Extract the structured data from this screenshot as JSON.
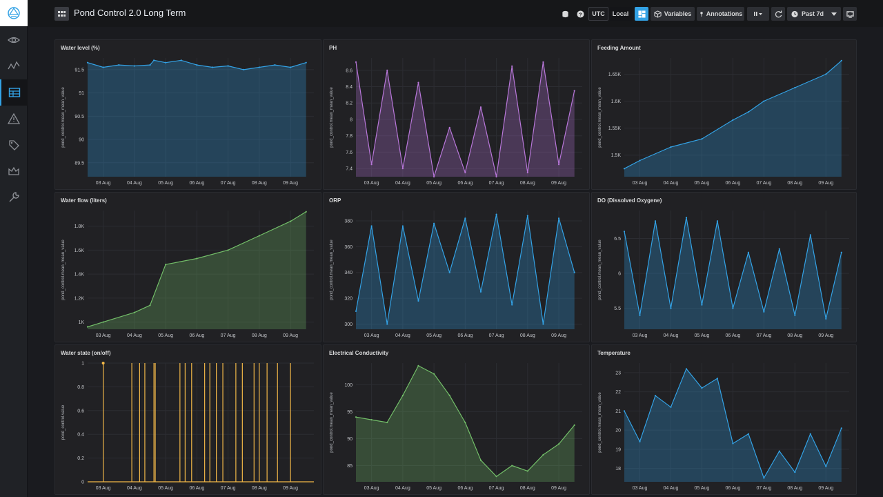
{
  "header": {
    "title": "Pond Control 2.0 Long Term",
    "utc_label": "UTC",
    "local_label": "Local",
    "variables_label": "Variables",
    "annotations_label": "Annotations",
    "time_range_label": "Past 7d"
  },
  "sidebar": {
    "items": [
      "logo-icon",
      "eye-icon",
      "pulse-icon",
      "dashboard-icon",
      "alert-icon",
      "tags-icon",
      "crown-icon",
      "wrench-icon"
    ]
  },
  "colors": {
    "blue": "#33a2e5",
    "pink": "#b877d9",
    "green": "#73bf69",
    "orange": "#f2b848",
    "accent": "#33a2e5"
  },
  "chart_data": [
    {
      "type": "area",
      "title": "Water level (%)",
      "ylabel": "pond_control.mean_mean_value",
      "color": "#33a2e5",
      "x": [
        "02 Aug 12:00",
        "03 Aug",
        "03 Aug 12:00",
        "04 Aug",
        "04 Aug 12:00",
        "04 Aug 15:00",
        "05 Aug",
        "05 Aug 12:00",
        "06 Aug",
        "06 Aug 12:00",
        "07 Aug",
        "07 Aug 12:00",
        "08 Aug",
        "08 Aug 12:00",
        "09 Aug",
        "09 Aug 12:00"
      ],
      "values": [
        91.65,
        91.55,
        91.6,
        91.58,
        91.6,
        91.7,
        91.65,
        91.7,
        91.6,
        91.55,
        91.58,
        91.5,
        91.55,
        91.6,
        91.55,
        91.65
      ],
      "ylim": [
        89.2,
        91.75
      ],
      "yticks": [
        "89.5",
        "90",
        "90.5",
        "91",
        "91.5"
      ],
      "xticks": [
        "03 Aug",
        "04 Aug",
        "05 Aug",
        "06 Aug",
        "07 Aug",
        "08 Aug",
        "09 Aug"
      ]
    },
    {
      "type": "area",
      "title": "PH",
      "ylabel": "pond_control.mean_mean_value",
      "color": "#b877d9",
      "x": [
        "02 Aug 12:00",
        "03 Aug",
        "03 Aug 12:00",
        "04 Aug",
        "04 Aug 12:00",
        "05 Aug",
        "05 Aug 12:00",
        "06 Aug",
        "06 Aug 12:00",
        "07 Aug",
        "07 Aug 12:00",
        "08 Aug",
        "08 Aug 12:00",
        "09 Aug",
        "09 Aug 12:00"
      ],
      "values": [
        8.7,
        7.45,
        8.6,
        7.4,
        8.45,
        7.3,
        7.9,
        7.35,
        8.15,
        7.3,
        8.65,
        7.35,
        8.7,
        7.45,
        8.35
      ],
      "ylim": [
        7.3,
        8.75
      ],
      "yticks": [
        "7.4",
        "7.6",
        "7.8",
        "8",
        "8.2",
        "8.4",
        "8.6"
      ],
      "xticks": [
        "03 Aug",
        "04 Aug",
        "05 Aug",
        "06 Aug",
        "07 Aug",
        "08 Aug",
        "09 Aug"
      ]
    },
    {
      "type": "area",
      "title": "Feeding Amount",
      "ylabel": "pond_control.mean_mean_value",
      "color": "#33a2e5",
      "x": [
        "02 Aug 12:00",
        "03 Aug",
        "04 Aug",
        "05 Aug",
        "06 Aug",
        "06 Aug 12:00",
        "07 Aug",
        "08 Aug",
        "09 Aug",
        "09 Aug 12:00"
      ],
      "values": [
        1475,
        1490,
        1515,
        1530,
        1565,
        1580,
        1600,
        1625,
        1650,
        1675
      ],
      "ylim": [
        1460,
        1680
      ],
      "yticks": [
        "1.5K",
        "1.55K",
        "1.6K",
        "1.65K"
      ],
      "xticks": [
        "03 Aug",
        "04 Aug",
        "05 Aug",
        "06 Aug",
        "07 Aug",
        "08 Aug",
        "09 Aug"
      ]
    },
    {
      "type": "area",
      "title": "Water flow (liters)",
      "ylabel": "pond_control.mean_mean_value",
      "color": "#73bf69",
      "x": [
        "02 Aug 12:00",
        "03 Aug",
        "04 Aug",
        "04 Aug 12:00",
        "05 Aug",
        "06 Aug",
        "07 Aug",
        "08 Aug",
        "09 Aug",
        "09 Aug 12:00"
      ],
      "values": [
        960,
        1000,
        1080,
        1140,
        1480,
        1530,
        1600,
        1720,
        1840,
        1920
      ],
      "ylim": [
        940,
        1930
      ],
      "yticks": [
        "1K",
        "1.2K",
        "1.4K",
        "1.6K",
        "1.8K"
      ],
      "xticks": [
        "03 Aug",
        "04 Aug",
        "05 Aug",
        "06 Aug",
        "07 Aug",
        "08 Aug",
        "09 Aug"
      ]
    },
    {
      "type": "area",
      "title": "ORP",
      "ylabel": "pond_control.mean_mean_value",
      "color": "#33a2e5",
      "x": [
        "02 Aug 12:00",
        "03 Aug",
        "03 Aug 12:00",
        "04 Aug",
        "04 Aug 12:00",
        "05 Aug",
        "05 Aug 12:00",
        "06 Aug",
        "06 Aug 12:00",
        "07 Aug",
        "07 Aug 12:00",
        "08 Aug",
        "08 Aug 12:00",
        "09 Aug",
        "09 Aug 12:00"
      ],
      "values": [
        310,
        376,
        300,
        376,
        318,
        378,
        340,
        382,
        325,
        385,
        315,
        384,
        300,
        382,
        340
      ],
      "ylim": [
        296,
        388
      ],
      "yticks": [
        "300",
        "320",
        "340",
        "360",
        "380"
      ],
      "xticks": [
        "03 Aug",
        "04 Aug",
        "05 Aug",
        "06 Aug",
        "07 Aug",
        "08 Aug",
        "09 Aug"
      ]
    },
    {
      "type": "area",
      "title": "DO (Dissolved Oxygene)",
      "ylabel": "pond_control.mean_mean_value",
      "color": "#33a2e5",
      "x": [
        "02 Aug 12:00",
        "03 Aug",
        "03 Aug 12:00",
        "04 Aug",
        "04 Aug 12:00",
        "05 Aug",
        "05 Aug 12:00",
        "06 Aug",
        "06 Aug 12:00",
        "07 Aug",
        "07 Aug 12:00",
        "08 Aug",
        "08 Aug 12:00",
        "09 Aug",
        "09 Aug 12:00"
      ],
      "values": [
        6.6,
        5.4,
        6.75,
        5.5,
        6.8,
        5.55,
        6.75,
        5.5,
        6.3,
        5.45,
        6.35,
        5.4,
        6.55,
        5.35,
        6.3
      ],
      "ylim": [
        5.2,
        6.9
      ],
      "yticks": [
        "5.5",
        "6",
        "6.5"
      ],
      "xticks": [
        "03 Aug",
        "04 Aug",
        "05 Aug",
        "06 Aug",
        "07 Aug",
        "08 Aug",
        "09 Aug"
      ]
    },
    {
      "type": "line",
      "title": "Water state (on/off)",
      "ylabel": "pond_control.value",
      "color": "#f2b848",
      "pulses": [
        "03 Aug 00:00",
        "03 Aug 22:00",
        "04 Aug 04:00",
        "04 Aug 08:00",
        "04 Aug 15:00",
        "04 Aug 16:00",
        "05 Aug 11:00",
        "05 Aug 15:00",
        "05 Aug 20:00",
        "06 Aug 06:00",
        "06 Aug 10:00",
        "06 Aug 15:00",
        "06 Aug 20:00",
        "07 Aug 06:00",
        "07 Aug 11:00",
        "07 Aug 20:00",
        "08 Aug 00:00",
        "08 Aug 06:00",
        "08 Aug 14:00",
        "09 Aug 00:00"
      ],
      "ylim": [
        0,
        1
      ],
      "yticks": [
        "0",
        "0.2",
        "0.4",
        "0.6",
        "0.8",
        "1"
      ],
      "xticks": [
        "03 Aug",
        "04 Aug",
        "05 Aug",
        "06 Aug",
        "07 Aug",
        "08 Aug",
        "09 Aug"
      ]
    },
    {
      "type": "area",
      "title": "Electrical Conductivity",
      "ylabel": "pond_control.mean_mean_value",
      "color": "#73bf69",
      "x": [
        "02 Aug 12:00",
        "03 Aug",
        "03 Aug 12:00",
        "04 Aug",
        "04 Aug 12:00",
        "05 Aug",
        "05 Aug 12:00",
        "06 Aug",
        "06 Aug 12:00",
        "07 Aug",
        "07 Aug 12:00",
        "08 Aug",
        "08 Aug 12:00",
        "09 Aug",
        "09 Aug 12:00"
      ],
      "values": [
        94,
        93.5,
        93,
        98,
        103.5,
        102,
        98,
        93,
        86,
        83,
        85,
        84,
        87,
        89,
        92.5
      ],
      "ylim": [
        82,
        104
      ],
      "yticks": [
        "85",
        "90",
        "95",
        "100"
      ],
      "xticks": [
        "03 Aug",
        "04 Aug",
        "05 Aug",
        "06 Aug",
        "07 Aug",
        "08 Aug",
        "09 Aug"
      ]
    },
    {
      "type": "area",
      "title": "Temperature",
      "ylabel": "pond_control.mean_mean_value",
      "color": "#33a2e5",
      "x": [
        "02 Aug 12:00",
        "03 Aug",
        "03 Aug 12:00",
        "04 Aug",
        "04 Aug 12:00",
        "05 Aug",
        "05 Aug 12:00",
        "06 Aug",
        "06 Aug 12:00",
        "07 Aug",
        "07 Aug 12:00",
        "08 Aug",
        "08 Aug 12:00",
        "09 Aug",
        "09 Aug 12:00"
      ],
      "values": [
        21,
        19.4,
        21.8,
        21.2,
        23.2,
        22.2,
        22.7,
        19.3,
        19.8,
        17.5,
        18.9,
        17.8,
        19.8,
        18.1,
        20.1
      ],
      "ylim": [
        17.3,
        23.5
      ],
      "yticks": [
        "18",
        "19",
        "20",
        "21",
        "22",
        "23"
      ],
      "xticks": [
        "03 Aug",
        "04 Aug",
        "05 Aug",
        "06 Aug",
        "07 Aug",
        "08 Aug",
        "09 Aug"
      ]
    }
  ]
}
